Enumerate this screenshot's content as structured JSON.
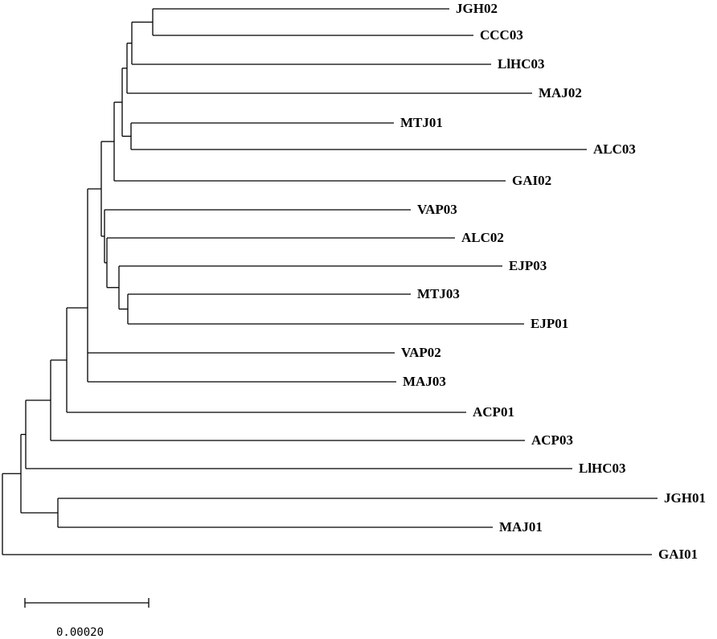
{
  "tree": {
    "leaves": [
      "JGH02",
      "CCC03",
      "LlHC03",
      "MAJ02",
      "MTJ01",
      "ALC03",
      "GAI02",
      "VAP03",
      "ALC02",
      "EJP03",
      "MTJ03",
      "EJP01",
      "VAP02",
      "MAJ03",
      "ACP01",
      "ACP03",
      "LlHC03",
      "JGH01",
      "MAJ01",
      "GAI01"
    ]
  },
  "scale_bar": {
    "label": "0.00020",
    "length": 0.0002
  },
  "colors": {
    "line": "#000000",
    "background": "#ffffff"
  }
}
